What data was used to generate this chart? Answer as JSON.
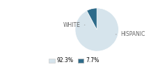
{
  "slices": [
    92.3,
    7.7
  ],
  "labels": [
    "WHITE",
    "HISPANIC"
  ],
  "colors": [
    "#d6e4ec",
    "#2e6b8a"
  ],
  "legend_labels": [
    "92.3%",
    "7.7%"
  ],
  "startangle": 90,
  "background_color": "#ffffff"
}
